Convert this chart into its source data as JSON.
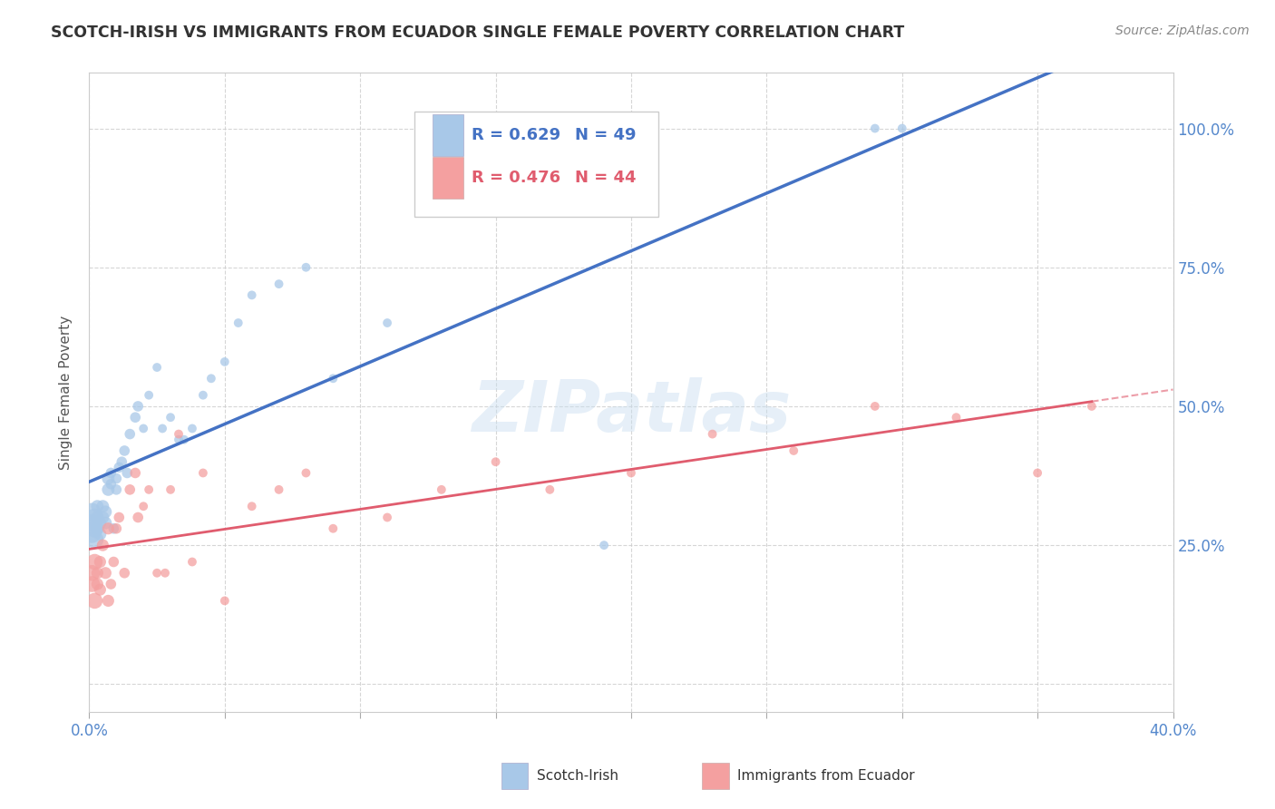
{
  "title": "SCOTCH-IRISH VS IMMIGRANTS FROM ECUADOR SINGLE FEMALE POVERTY CORRELATION CHART",
  "source": "Source: ZipAtlas.com",
  "ylabel": "Single Female Poverty",
  "xlim": [
    0.0,
    0.4
  ],
  "ylim": [
    -0.05,
    1.1
  ],
  "yticks": [
    0.0,
    0.25,
    0.5,
    0.75,
    1.0
  ],
  "ytick_labels": [
    "",
    "25.0%",
    "50.0%",
    "75.0%",
    "100.0%"
  ],
  "series1_label": "Scotch-Irish",
  "series2_label": "Immigrants from Ecuador",
  "series1_color": "#a8c8e8",
  "series2_color": "#f4a0a0",
  "series1_line_color": "#4472c4",
  "series2_line_color": "#e05c6e",
  "legend_r1": "R = 0.629",
  "legend_n1": "N = 49",
  "legend_r2": "R = 0.476",
  "legend_n2": "N = 44",
  "background_color": "#ffffff",
  "grid_color": "#cccccc",
  "watermark": "ZIPatlas",
  "scotch_irish_x": [
    0.001,
    0.001,
    0.001,
    0.002,
    0.002,
    0.002,
    0.003,
    0.003,
    0.003,
    0.004,
    0.004,
    0.005,
    0.005,
    0.006,
    0.006,
    0.007,
    0.007,
    0.008,
    0.008,
    0.009,
    0.01,
    0.01,
    0.011,
    0.012,
    0.013,
    0.014,
    0.015,
    0.017,
    0.018,
    0.02,
    0.022,
    0.025,
    0.027,
    0.03,
    0.033,
    0.035,
    0.038,
    0.042,
    0.045,
    0.05,
    0.055,
    0.06,
    0.07,
    0.08,
    0.09,
    0.11,
    0.19,
    0.29,
    0.3
  ],
  "scotch_irish_y": [
    0.27,
    0.29,
    0.31,
    0.26,
    0.28,
    0.3,
    0.28,
    0.3,
    0.32,
    0.27,
    0.29,
    0.3,
    0.32,
    0.29,
    0.31,
    0.35,
    0.37,
    0.38,
    0.36,
    0.28,
    0.35,
    0.37,
    0.39,
    0.4,
    0.42,
    0.38,
    0.45,
    0.48,
    0.5,
    0.46,
    0.52,
    0.57,
    0.46,
    0.48,
    0.44,
    0.44,
    0.46,
    0.52,
    0.55,
    0.58,
    0.65,
    0.7,
    0.72,
    0.75,
    0.55,
    0.65,
    0.25,
    1.0,
    1.0
  ],
  "ecuador_x": [
    0.001,
    0.001,
    0.002,
    0.002,
    0.003,
    0.003,
    0.004,
    0.004,
    0.005,
    0.006,
    0.007,
    0.007,
    0.008,
    0.009,
    0.01,
    0.011,
    0.013,
    0.015,
    0.017,
    0.018,
    0.02,
    0.022,
    0.025,
    0.028,
    0.03,
    0.033,
    0.038,
    0.042,
    0.05,
    0.06,
    0.07,
    0.08,
    0.09,
    0.11,
    0.13,
    0.15,
    0.17,
    0.2,
    0.23,
    0.26,
    0.29,
    0.32,
    0.35,
    0.37
  ],
  "ecuador_y": [
    0.2,
    0.18,
    0.22,
    0.15,
    0.2,
    0.18,
    0.22,
    0.17,
    0.25,
    0.2,
    0.15,
    0.28,
    0.18,
    0.22,
    0.28,
    0.3,
    0.2,
    0.35,
    0.38,
    0.3,
    0.32,
    0.35,
    0.2,
    0.2,
    0.35,
    0.45,
    0.22,
    0.38,
    0.15,
    0.32,
    0.35,
    0.38,
    0.28,
    0.3,
    0.35,
    0.4,
    0.35,
    0.38,
    0.45,
    0.42,
    0.5,
    0.48,
    0.38,
    0.5
  ],
  "title_fontsize": 12.5,
  "axis_label_fontsize": 11,
  "tick_fontsize": 12
}
